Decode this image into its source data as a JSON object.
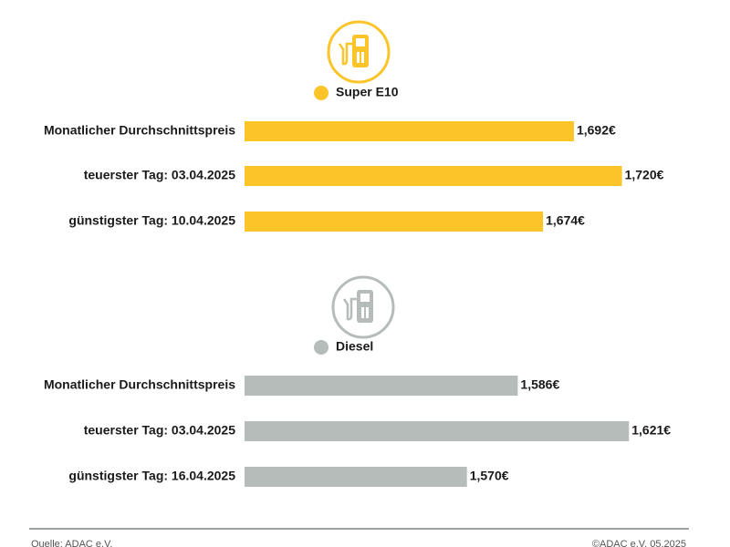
{
  "chart_data": [
    {
      "type": "bar",
      "orientation": "horizontal",
      "categories": [
        "Monatlicher Durchschnittspreis",
        "teuerster Tag: 03.04.2025",
        "günstigster Tag: 10.04.2025"
      ],
      "series": [
        {
          "name": "Super E10",
          "color": "#fbc52a",
          "values": [
            1.692,
            1.72,
            1.674
          ],
          "value_labels": [
            "1,692€",
            "1,720€",
            "1,674€"
          ]
        }
      ],
      "xlim": [
        1.5,
        1.75
      ]
    },
    {
      "type": "bar",
      "orientation": "horizontal",
      "categories": [
        "Monatlicher Durchschnittspreis",
        "teuerster Tag: 03.04.2025",
        "günstigster Tag: 16.04.2025"
      ],
      "series": [
        {
          "name": "Diesel",
          "color": "#b5bcba",
          "values": [
            1.586,
            1.621,
            1.57
          ],
          "value_labels": [
            "1,586€",
            "1,621€",
            "1,570€"
          ]
        }
      ],
      "xlim": [
        1.5,
        1.635
      ]
    }
  ],
  "footer": {
    "source": "Quelle: ADAC e.V.",
    "copyright": "©ADAC e.V. 05.2025"
  }
}
